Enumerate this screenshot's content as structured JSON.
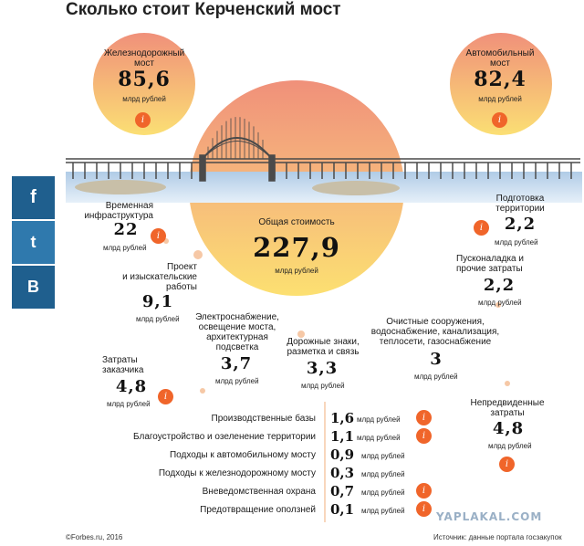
{
  "title": "Сколько стоит Керченский мост",
  "social": {
    "facebook": "f",
    "twitter": "t",
    "vkontakte": "В"
  },
  "rail_bridge": {
    "label_line1": "Железнодорожный",
    "label_line2": "мост",
    "value": "85,6",
    "unit": "млрд рублей"
  },
  "road_bridge": {
    "label_line1": "Автомобильный",
    "label_line2": "мост",
    "value": "82,4",
    "unit": "млрд рублей"
  },
  "total": {
    "label": "Общая стоимость",
    "value": "227,9",
    "unit": "млрд рублей"
  },
  "temp_infra": {
    "label_line1": "Временная",
    "label_line2": "инфраструктура",
    "value": "22",
    "unit": "млрд рублей"
  },
  "territory": {
    "label_line1": "Подготовка",
    "label_line2": "территории",
    "value": "2,2",
    "unit": "млрд рублей"
  },
  "design": {
    "label_line1": "Проект",
    "label_line2": "и изыскательские",
    "label_line3": "работы",
    "value": "9,1",
    "unit": "млрд рублей"
  },
  "commissioning": {
    "label_line1": "Пусконаладка и",
    "label_line2": "прочие затраты",
    "value": "2,2",
    "unit": "млрд рублей"
  },
  "power": {
    "label_line1": "Электроснабжение,",
    "label_line2": "освещение моста,",
    "label_line3": "архитектурная",
    "label_line4": "подсветка",
    "value": "3,7",
    "unit": "млрд рублей"
  },
  "signs": {
    "label_line1": "Дорожные знаки,",
    "label_line2": "разметка и связь",
    "value": "3,3",
    "unit": "млрд рублей"
  },
  "utilities": {
    "label_line1": "Очистные сооружения,",
    "label_line2": "водоснабжение, канализация,",
    "label_line3": "теплосети, газоснабжение",
    "value": "3",
    "unit": "млрд рублей"
  },
  "customer": {
    "label_line1": "Затраты",
    "label_line2": "заказчика",
    "value": "4,8",
    "unit": "млрд рублей"
  },
  "unforeseen": {
    "label_line1": "Непредвиденные",
    "label_line2": "затраты",
    "value": "4,8",
    "unit": "млрд рублей"
  },
  "list": [
    {
      "name": "Производственные базы",
      "value": "1,6",
      "unit": "млрд рублей",
      "info": true
    },
    {
      "name": "Благоустройство и озеленение территории",
      "value": "1,1",
      "unit": "млрд рублей",
      "info": true
    },
    {
      "name": "Подходы к автомобильному мосту",
      "value": "0,9",
      "unit": "млрд рублей",
      "info": false
    },
    {
      "name": "Подходы к железнодорожному мосту",
      "value": "0,3",
      "unit": "млрд рублей",
      "info": false
    },
    {
      "name": "Вневедомственная охрана",
      "value": "0,7",
      "unit": "млрд рублей",
      "info": true
    },
    {
      "name": "Предотвращение оползней",
      "value": "0,1",
      "unit": "млрд рублей",
      "info": true
    }
  ],
  "info_glyph": "i",
  "footer": {
    "left": "©Forbes.ru, 2016",
    "right": "Источник: данные портала госзакупок"
  },
  "watermark": "YAPLAKAL.COM",
  "colors": {
    "sun_top": "#f08f7a",
    "sun_bottom": "#fbe070",
    "water": "#bcd4ea",
    "accent": "#f0652a",
    "social": "#1f5f8e"
  }
}
